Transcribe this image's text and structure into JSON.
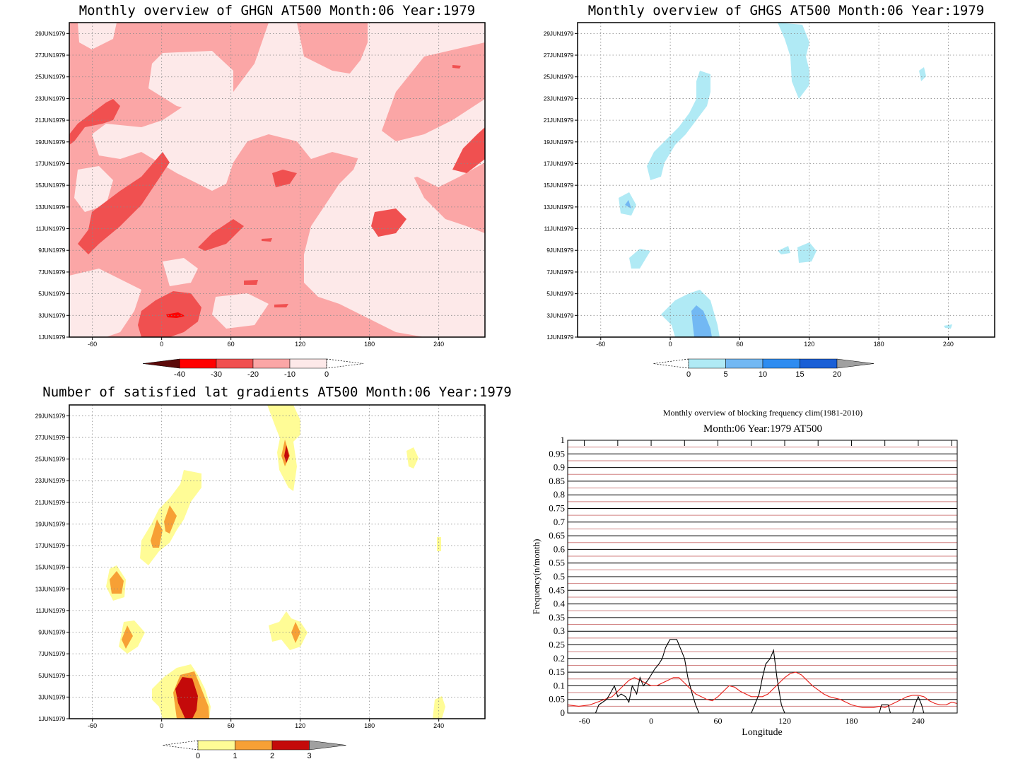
{
  "date_labels": [
    "1JUN1979",
    "3JUN1979",
    "5JUN1979",
    "7JUN1979",
    "9JUN1979",
    "11JUN1979",
    "13JUN1979",
    "15JUN1979",
    "17JUN1979",
    "19JUN1979",
    "21JUN1979",
    "23JUN1979",
    "25JUN1979",
    "27JUN1979",
    "29JUN1979"
  ],
  "lon_ticks": [
    "-60",
    "0",
    "60",
    "120",
    "180",
    "240"
  ],
  "colors": {
    "ghgn": [
      "#5c0a0a",
      "#ff0000",
      "#f05050",
      "#fba6a6",
      "#fde9e9"
    ],
    "ghgs": [
      "#b0eaf5",
      "#72b8f3",
      "#2e8cf0",
      "#1a5fd6",
      "#a0a0a0"
    ],
    "lat": [
      "#fffc96",
      "#f7a035",
      "#c40a0a",
      "#a0a0a0"
    ],
    "clim_line": "#e8201a",
    "obs_line": "#000000",
    "grid_red": "#d08080"
  },
  "chart_data": [
    {
      "type": "heatmap",
      "title": "Monthly overview of GHGN AT500 Month:06 Year:1979",
      "x_range": [
        -80,
        280
      ],
      "y_range": [
        "1JUN1979",
        "30JUN1979"
      ],
      "colorbar": {
        "labels": [
          "-40",
          "-30",
          "-20",
          "-10",
          "0"
        ],
        "bins": [
          "<-40",
          "-40 to -30",
          "-30 to -20",
          "-20 to -10",
          "-10 to 0",
          ">0"
        ]
      },
      "grid": true
    },
    {
      "type": "heatmap",
      "title": "Monthly overview of GHGS AT500 Month:06 Year:1979",
      "x_range": [
        -80,
        280
      ],
      "y_range": [
        "1JUN1979",
        "30JUN1979"
      ],
      "colorbar": {
        "labels": [
          "0",
          "5",
          "10",
          "15",
          "20"
        ],
        "bins": [
          "<0",
          "0-5",
          "5-10",
          "10-15",
          "15-20",
          ">20"
        ]
      },
      "grid": true
    },
    {
      "type": "heatmap",
      "title": "Number of satisfied lat gradients AT500 Month:06 Year:1979",
      "x_range": [
        -80,
        280
      ],
      "y_range": [
        "1JUN1979",
        "30JUN1979"
      ],
      "colorbar": {
        "labels": [
          "0",
          "1",
          "2",
          "3"
        ],
        "bins": [
          "<0",
          "0-1",
          "1-2",
          "2-3",
          ">3"
        ]
      },
      "grid": true
    },
    {
      "type": "line",
      "title": "Monthly overview of blocking frequency clim(1981-2010)",
      "subtitle": "Month:06 Year:1979  AT500",
      "xlabel": "Longitude",
      "ylabel": "Frequency(n/month)",
      "xlim": [
        -75,
        275
      ],
      "ylim": [
        0,
        1
      ],
      "x_ticks": [
        "-60",
        "0",
        "60",
        "120",
        "180",
        "240"
      ],
      "y_ticks": [
        "0",
        "0.05",
        "0.1",
        "0.15",
        "0.2",
        "0.25",
        "0.3",
        "0.35",
        "0.4",
        "0.45",
        "0.5",
        "0.55",
        "0.6",
        "0.65",
        "0.7",
        "0.75",
        "0.8",
        "0.85",
        "0.9",
        "0.95",
        "1"
      ],
      "series": [
        {
          "color_key": "clim_line",
          "x": [
            -75,
            -65,
            -55,
            -45,
            -35,
            -25,
            -20,
            -15,
            -10,
            -5,
            0,
            5,
            10,
            15,
            20,
            25,
            30,
            35,
            40,
            45,
            50,
            55,
            60,
            65,
            70,
            75,
            80,
            85,
            90,
            95,
            100,
            105,
            110,
            115,
            120,
            125,
            130,
            135,
            140,
            145,
            150,
            155,
            160,
            165,
            170,
            175,
            180,
            185,
            190,
            195,
            200,
            205,
            210,
            215,
            220,
            225,
            230,
            235,
            240,
            245,
            250,
            255,
            260,
            265,
            270,
            275
          ],
          "y": [
            0.03,
            0.025,
            0.03,
            0.045,
            0.06,
            0.1,
            0.12,
            0.13,
            0.12,
            0.11,
            0.1,
            0.1,
            0.11,
            0.12,
            0.13,
            0.13,
            0.11,
            0.09,
            0.07,
            0.06,
            0.05,
            0.045,
            0.06,
            0.08,
            0.1,
            0.095,
            0.08,
            0.07,
            0.06,
            0.06,
            0.06,
            0.07,
            0.09,
            0.11,
            0.13,
            0.145,
            0.15,
            0.14,
            0.12,
            0.1,
            0.085,
            0.07,
            0.06,
            0.055,
            0.05,
            0.04,
            0.03,
            0.025,
            0.02,
            0.02,
            0.02,
            0.025,
            0.02,
            0.03,
            0.04,
            0.05,
            0.06,
            0.065,
            0.065,
            0.06,
            0.045,
            0.035,
            0.03,
            0.03,
            0.04,
            0.035
          ]
        },
        {
          "color_key": "obs_line",
          "x": [
            -75,
            -50,
            -47,
            -40,
            -37,
            -33,
            -30,
            -27,
            -23,
            -20,
            -17,
            -13,
            -10,
            -7,
            -3,
            0,
            3,
            7,
            10,
            13,
            17,
            20,
            23,
            27,
            30,
            33,
            37,
            40,
            43,
            47,
            90,
            93,
            97,
            100,
            103,
            107,
            110,
            113,
            117,
            120,
            205,
            207,
            210,
            213,
            215,
            235,
            237,
            240,
            243,
            245,
            275
          ],
          "y": [
            0,
            0,
            0.03,
            0.05,
            0.07,
            0.1,
            0.06,
            0.07,
            0.06,
            0.04,
            0.1,
            0.07,
            0.13,
            0.1,
            0.12,
            0.14,
            0.16,
            0.18,
            0.2,
            0.24,
            0.27,
            0.27,
            0.27,
            0.23,
            0.2,
            0.13,
            0.07,
            0.03,
            0,
            0,
            0,
            0.03,
            0.07,
            0.13,
            0.18,
            0.2,
            0.23,
            0.13,
            0.03,
            0,
            0,
            0.03,
            0.03,
            0.03,
            0,
            0,
            0.03,
            0.06,
            0.03,
            0,
            0
          ]
        }
      ]
    }
  ]
}
